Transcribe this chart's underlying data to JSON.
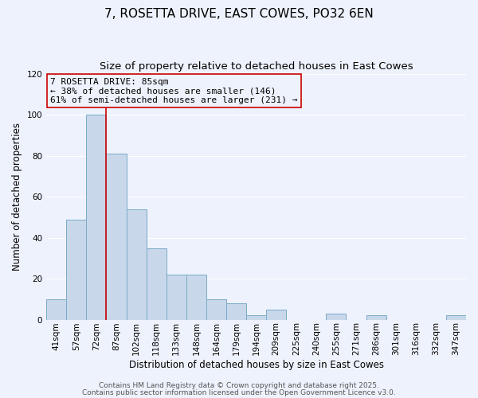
{
  "title": "7, ROSETTA DRIVE, EAST COWES, PO32 6EN",
  "subtitle": "Size of property relative to detached houses in East Cowes",
  "xlabel": "Distribution of detached houses by size in East Cowes",
  "ylabel": "Number of detached properties",
  "bar_labels": [
    "41sqm",
    "57sqm",
    "72sqm",
    "87sqm",
    "102sqm",
    "118sqm",
    "133sqm",
    "148sqm",
    "164sqm",
    "179sqm",
    "194sqm",
    "209sqm",
    "225sqm",
    "240sqm",
    "255sqm",
    "271sqm",
    "286sqm",
    "301sqm",
    "316sqm",
    "332sqm",
    "347sqm"
  ],
  "bar_values": [
    10,
    49,
    100,
    81,
    54,
    35,
    22,
    22,
    10,
    8,
    2,
    5,
    0,
    0,
    3,
    0,
    2,
    0,
    0,
    0,
    2
  ],
  "bar_color": "#c8d8ea",
  "bar_edge_color": "#7aaac8",
  "vline_index": 3,
  "vline_color": "#cc0000",
  "annotation_title": "7 ROSETTA DRIVE: 85sqm",
  "annotation_line1": "← 38% of detached houses are smaller (146)",
  "annotation_line2": "61% of semi-detached houses are larger (231) →",
  "ylim": [
    0,
    120
  ],
  "yticks": [
    0,
    20,
    40,
    60,
    80,
    100,
    120
  ],
  "background_color": "#eef2fc",
  "grid_color": "#ffffff",
  "footer_line1": "Contains HM Land Registry data © Crown copyright and database right 2025.",
  "footer_line2": "Contains public sector information licensed under the Open Government Licence v3.0.",
  "title_fontsize": 11,
  "subtitle_fontsize": 9.5,
  "axis_fontsize": 8.5,
  "tick_fontsize": 7.5,
  "annotation_fontsize": 8,
  "footer_fontsize": 6.5
}
